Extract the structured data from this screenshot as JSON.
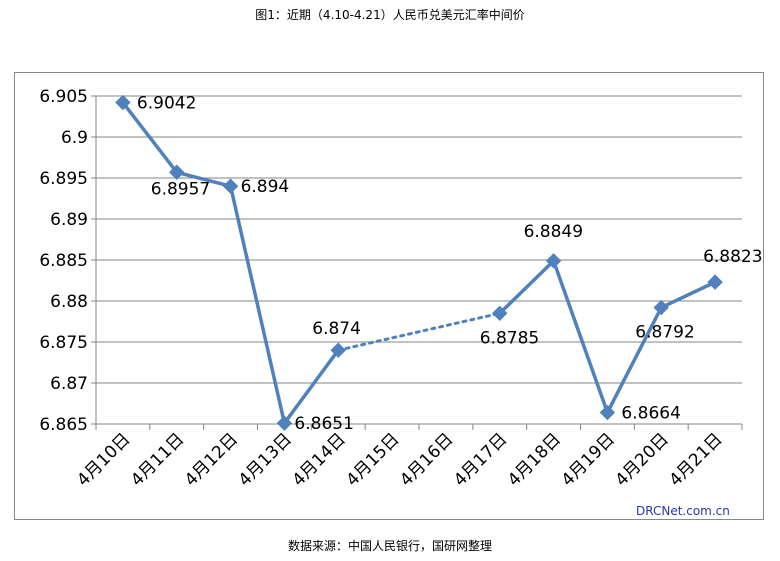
{
  "title": "图1：近期（4.10-4.21）人民币兑美元汇率中间价",
  "source": "数据来源：中国人民银行，国研网整理",
  "watermark": "DRCNet.com.cn",
  "chart_data": {
    "type": "line",
    "categories": [
      "4月10日",
      "4月11日",
      "4月12日",
      "4月13日",
      "4月14日",
      "4月15日",
      "4月16日",
      "4月17日",
      "4月18日",
      "4月19日",
      "4月20日",
      "4月21日"
    ],
    "values": [
      6.9042,
      6.8957,
      6.894,
      6.8651,
      6.874,
      null,
      null,
      6.8785,
      6.8849,
      6.8664,
      6.8792,
      6.8823
    ],
    "data_labels": [
      "6.9042",
      "6.8957",
      "6.894",
      "6.8651",
      "6.874",
      "",
      "",
      "6.8785",
      "6.8849",
      "6.8664",
      "6.8792",
      "6.8823"
    ],
    "gap_connector": "dotted",
    "ylim": [
      6.865,
      6.905
    ],
    "yticks": [
      "6.865",
      "6.87",
      "6.875",
      "6.88",
      "6.885",
      "6.89",
      "6.895",
      "6.9",
      "6.905"
    ],
    "grid": true,
    "legend": "none",
    "colors": {
      "line": "#4f81bd",
      "grid": "#868686",
      "axis": "#868686"
    }
  }
}
